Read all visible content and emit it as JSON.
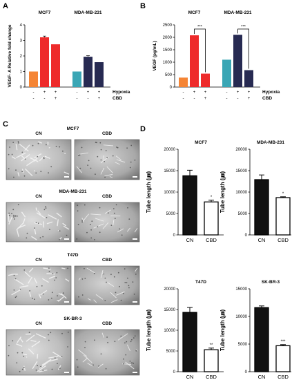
{
  "panels": {
    "A": "A",
    "B": "B",
    "C": "C",
    "D": "D"
  },
  "conditions": {
    "hypoxia_label": "Hypoxia",
    "cbd_label": "CBD",
    "hypoxia_signs": [
      "-",
      "+",
      "+",
      "-",
      "+",
      "+"
    ],
    "cbd_signs": [
      "-",
      "-",
      "+",
      "-",
      "-",
      "+"
    ]
  },
  "panel_c": {
    "columns": [
      "CN",
      "CBD"
    ],
    "cell_lines": [
      "MCF7",
      "MDA-MB-231",
      "T47D",
      "SK-BR-3"
    ]
  },
  "colors": {
    "orange": "#f58535",
    "red": "#ee2b2b",
    "teal": "#3aa6b5",
    "navy": "#272a52",
    "black": "#111111",
    "white": "#ffffff"
  },
  "chart_data": [
    {
      "id": "A",
      "type": "bar",
      "ylabel": "VEGF- A Relative fold change",
      "ylim": [
        0,
        4
      ],
      "yticks": [
        0,
        1,
        2,
        3,
        4
      ],
      "groups": [
        "MCF7",
        "MDA-MB-231"
      ],
      "values": [
        1.0,
        3.2,
        2.75,
        1.0,
        1.95,
        1.6
      ],
      "errors": [
        0,
        0.08,
        0,
        0,
        0.07,
        0
      ],
      "bar_colors": [
        "orange",
        "red",
        "red",
        "teal",
        "navy",
        "navy"
      ]
    },
    {
      "id": "B",
      "type": "bar",
      "ylabel": "VEGF (pg/mL)",
      "ylim": [
        0,
        2500
      ],
      "yticks": [
        0,
        500,
        1000,
        1500,
        2000,
        2500
      ],
      "groups": [
        "MCF7",
        "MDA-MB-231"
      ],
      "values": [
        380,
        2080,
        540,
        1100,
        2100,
        680
      ],
      "errors": [
        0,
        0,
        0,
        0,
        0,
        0
      ],
      "bar_colors": [
        "orange",
        "red",
        "red",
        "teal",
        "navy",
        "navy"
      ],
      "significance": [
        "***",
        "***"
      ]
    },
    {
      "id": "D1",
      "type": "bar",
      "title": "MCF7",
      "ylabel": "Tube length (㎛)",
      "categories": [
        "CN",
        "CBD"
      ],
      "values": [
        13800,
        7700
      ],
      "errors": [
        1300,
        400
      ],
      "ylim": [
        0,
        20000
      ],
      "yticks": [
        0,
        5000,
        10000,
        15000,
        20000
      ],
      "significance": "*"
    },
    {
      "id": "D2",
      "type": "bar",
      "title": "MDA-MB-231",
      "ylabel": "Tube length (㎛)",
      "categories": [
        "CN",
        "CBD"
      ],
      "values": [
        12900,
        8700
      ],
      "errors": [
        1100,
        200
      ],
      "ylim": [
        0,
        20000
      ],
      "yticks": [
        0,
        5000,
        10000,
        15000,
        20000
      ],
      "significance": "*"
    },
    {
      "id": "D3",
      "type": "bar",
      "title": "T47D",
      "ylabel": "Tube length (㎛)",
      "categories": [
        "CN",
        "CBD"
      ],
      "values": [
        14300,
        5300
      ],
      "errors": [
        1200,
        400
      ],
      "ylim": [
        0,
        20000
      ],
      "yticks": [
        0,
        5000,
        10000,
        15000,
        20000
      ],
      "significance": "**"
    },
    {
      "id": "D4",
      "type": "bar",
      "title": "SK-BR-3",
      "ylabel": "Tube length (㎛)",
      "categories": [
        "CN",
        "CBD"
      ],
      "values": [
        11600,
        4700
      ],
      "errors": [
        300,
        200
      ],
      "ylim": [
        0,
        15000
      ],
      "yticks": [
        0,
        5000,
        10000,
        15000
      ],
      "significance": "***"
    }
  ]
}
